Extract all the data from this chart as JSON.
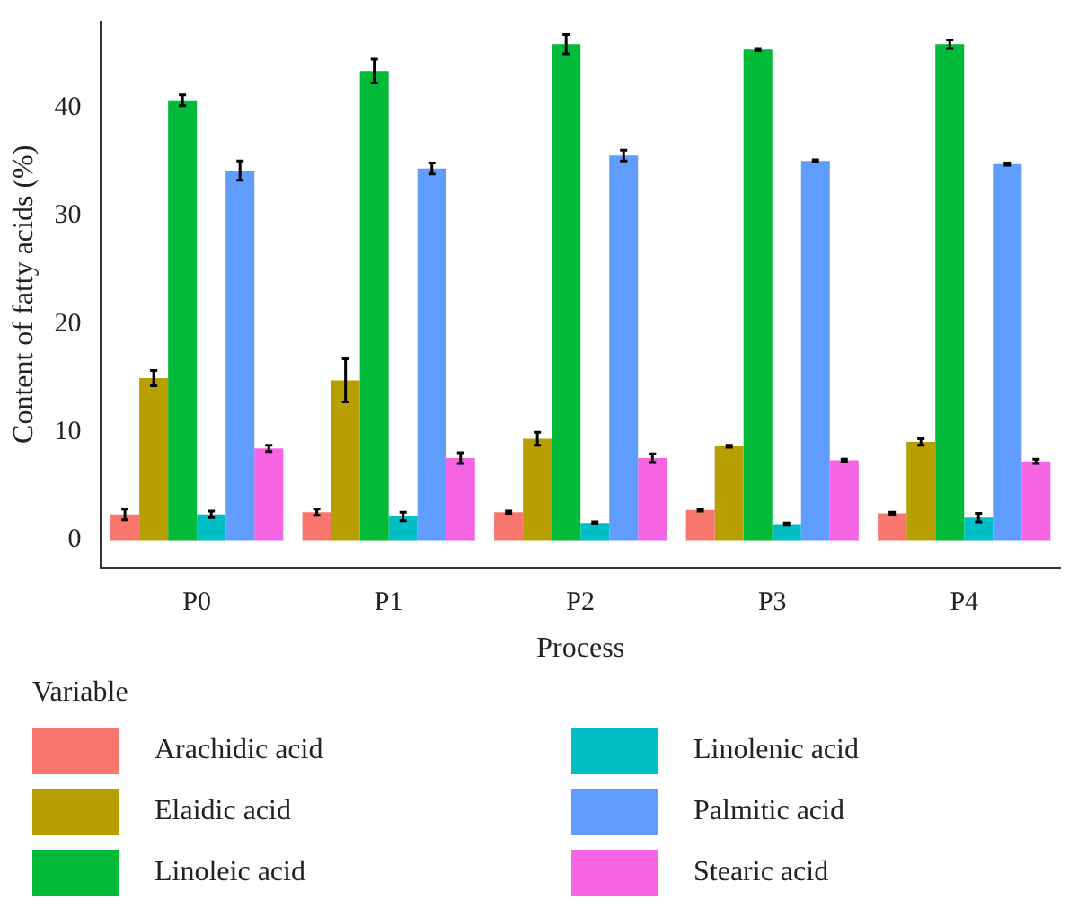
{
  "chart_data": {
    "type": "bar",
    "xlabel": "Process",
    "ylabel": "Content of fatty acids (%)",
    "legend_title": "Variable",
    "categories": [
      "P0",
      "P1",
      "P2",
      "P3",
      "P4"
    ],
    "series": [
      {
        "name": "Arachidic acid",
        "color": "#f8766d",
        "values": [
          2.4,
          2.6,
          2.6,
          2.8,
          2.5
        ],
        "errors": [
          0.5,
          0.3,
          0.1,
          0.1,
          0.1
        ]
      },
      {
        "name": "Elaidic acid",
        "color": "#b79f00",
        "values": [
          15.0,
          14.8,
          9.4,
          8.7,
          9.1
        ],
        "errors": [
          0.7,
          2.0,
          0.6,
          0.1,
          0.3
        ]
      },
      {
        "name": "Linoleic acid",
        "color": "#00ba38",
        "values": [
          40.7,
          43.4,
          45.9,
          45.4,
          45.9
        ],
        "errors": [
          0.5,
          1.1,
          0.9,
          0.1,
          0.4
        ]
      },
      {
        "name": "Linolenic acid",
        "color": "#00bfc4",
        "values": [
          2.4,
          2.2,
          1.6,
          1.5,
          2.1
        ],
        "errors": [
          0.3,
          0.4,
          0.1,
          0.1,
          0.4
        ]
      },
      {
        "name": "Palmitic acid",
        "color": "#619cff",
        "values": [
          34.2,
          34.4,
          35.6,
          35.1,
          34.8
        ],
        "errors": [
          0.9,
          0.5,
          0.5,
          0.1,
          0.1
        ]
      },
      {
        "name": "Stearic acid",
        "color": "#f564e3",
        "values": [
          8.5,
          7.6,
          7.6,
          7.4,
          7.3
        ],
        "errors": [
          0.3,
          0.5,
          0.4,
          0.1,
          0.2
        ]
      }
    ],
    "ylim": [
      -2.5,
      48
    ],
    "yticks": [
      0,
      10,
      20,
      30,
      40
    ],
    "grid": false,
    "legend": "bottom"
  }
}
